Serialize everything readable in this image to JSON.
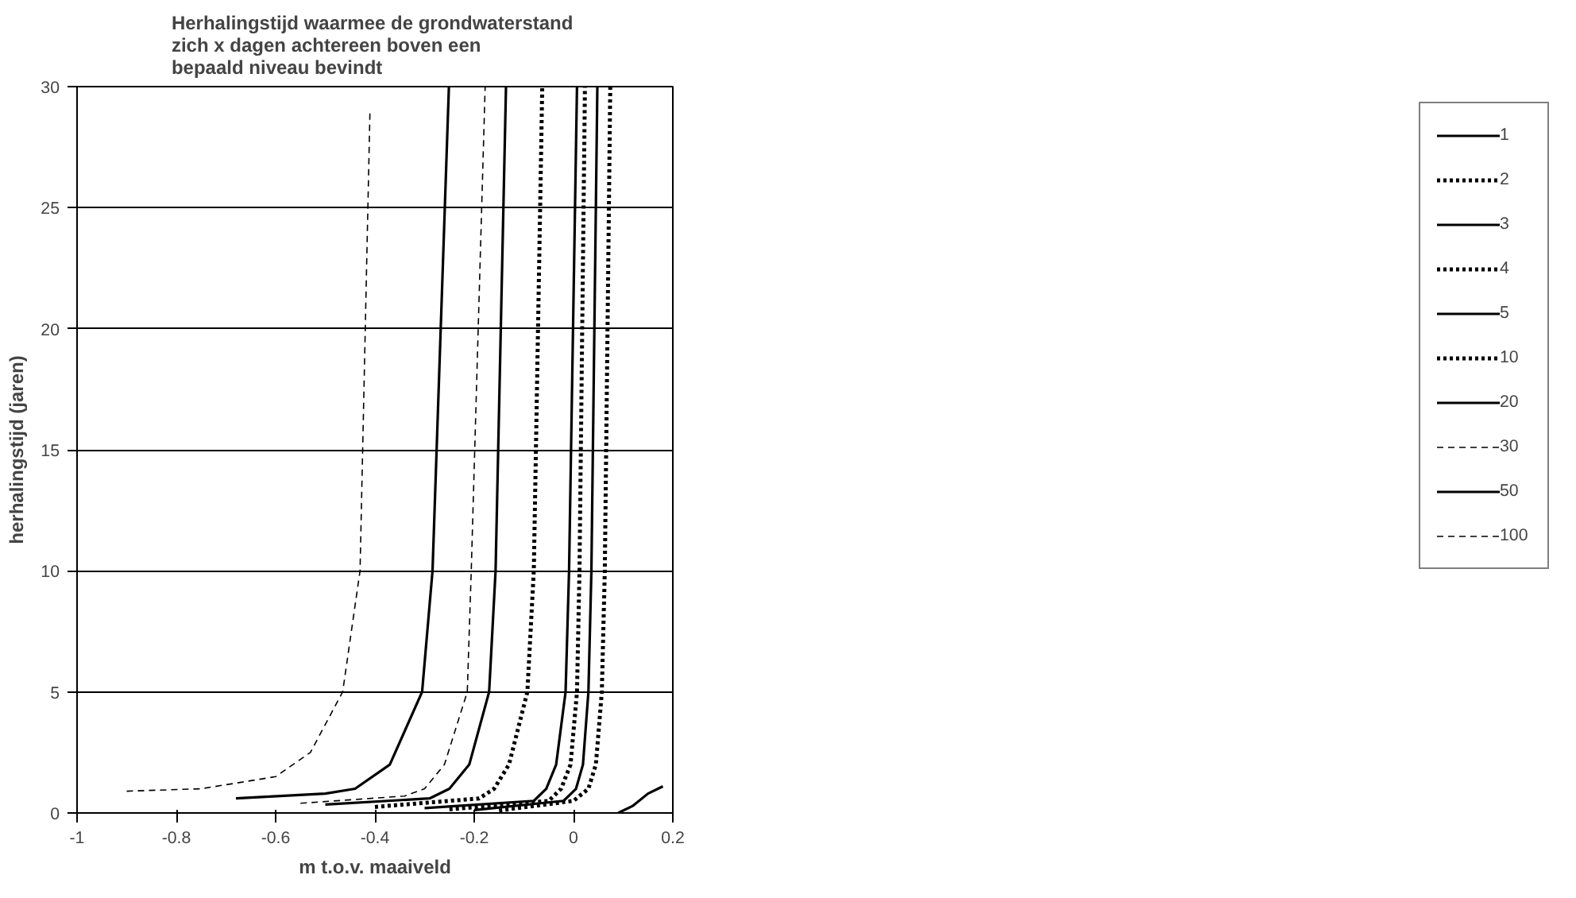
{
  "chart_data": {
    "type": "line",
    "title": "Herhalingstijd  waarmee de grondwaterstand\nzich x dagen achtereen boven een\nbepaald niveau bevindt",
    "xlabel": "m t.o.v. maaiveld",
    "ylabel": "herhalingstijd (jaren)",
    "xlim": [
      -1,
      0.2
    ],
    "xticks": [
      -1,
      -0.8,
      -0.6,
      -0.4,
      -0.2,
      0,
      0.2
    ],
    "ylim": [
      0,
      30
    ],
    "yticks": [
      0,
      5,
      10,
      15,
      20,
      25,
      30
    ],
    "grid": "y",
    "legend": "right",
    "marker": "none",
    "series": [
      {
        "name": "1",
        "color": "#000000",
        "line_style": "solid",
        "x": [
          0.09,
          0.12,
          0.15,
          0.18
        ],
        "values": [
          0,
          0.3,
          0.8,
          1.1
        ]
      },
      {
        "name": "2",
        "color": "#000000",
        "line_style": "dotted",
        "x": [
          -0.15,
          0,
          0.03,
          0.045,
          0.057,
          0.063,
          0.074
        ],
        "values": [
          0.1,
          0.5,
          1,
          2,
          5,
          10,
          30
        ]
      },
      {
        "name": "3",
        "color": "#000000",
        "line_style": "solid",
        "x": [
          -0.2,
          -0.02,
          0.005,
          0.019,
          0.03,
          0.036,
          0.048
        ],
        "values": [
          0.12,
          0.5,
          1,
          2,
          5,
          10,
          30
        ]
      },
      {
        "name": "4",
        "color": "#000000",
        "line_style": "dotted",
        "x": [
          -0.25,
          -0.05,
          -0.025,
          -0.006,
          0.007,
          0.012,
          0.023
        ],
        "values": [
          0.15,
          0.5,
          1,
          2,
          5,
          10,
          30
        ]
      },
      {
        "name": "5",
        "color": "#000000",
        "line_style": "solid",
        "x": [
          -0.3,
          -0.08,
          -0.055,
          -0.035,
          -0.016,
          -0.009,
          0.007
        ],
        "values": [
          0.2,
          0.5,
          1,
          2,
          5,
          10,
          30
        ]
      },
      {
        "name": "10",
        "color": "#000000",
        "line_style": "dotted",
        "x": [
          -0.4,
          -0.19,
          -0.16,
          -0.13,
          -0.093,
          -0.08,
          -0.063
        ],
        "values": [
          0.25,
          0.6,
          1,
          2,
          5,
          10,
          30
        ]
      },
      {
        "name": "20",
        "color": "#000000",
        "line_style": "solid",
        "x": [
          -0.5,
          -0.29,
          -0.25,
          -0.21,
          -0.17,
          -0.157,
          -0.136
        ],
        "values": [
          0.35,
          0.6,
          1,
          2,
          5,
          10,
          30
        ]
      },
      {
        "name": "30",
        "color": "#000000",
        "line_style": "dashed",
        "x": [
          -0.55,
          -0.34,
          -0.3,
          -0.26,
          -0.214,
          -0.206,
          -0.178
        ],
        "values": [
          0.4,
          0.7,
          1,
          2,
          5,
          10,
          30
        ]
      },
      {
        "name": "50",
        "color": "#000000",
        "line_style": "solid",
        "x": [
          -0.68,
          -0.5,
          -0.44,
          -0.37,
          -0.305,
          -0.284,
          -0.251
        ],
        "values": [
          0.6,
          0.8,
          1,
          2,
          5,
          10,
          30
        ]
      },
      {
        "name": "100",
        "color": "#000000",
        "line_style": "dashed",
        "x": [
          -0.9,
          -0.75,
          -0.6,
          -0.53,
          -0.465,
          -0.43,
          -0.41
        ],
        "values": [
          0.9,
          1,
          1.5,
          2.5,
          5,
          10,
          29
        ]
      }
    ]
  }
}
